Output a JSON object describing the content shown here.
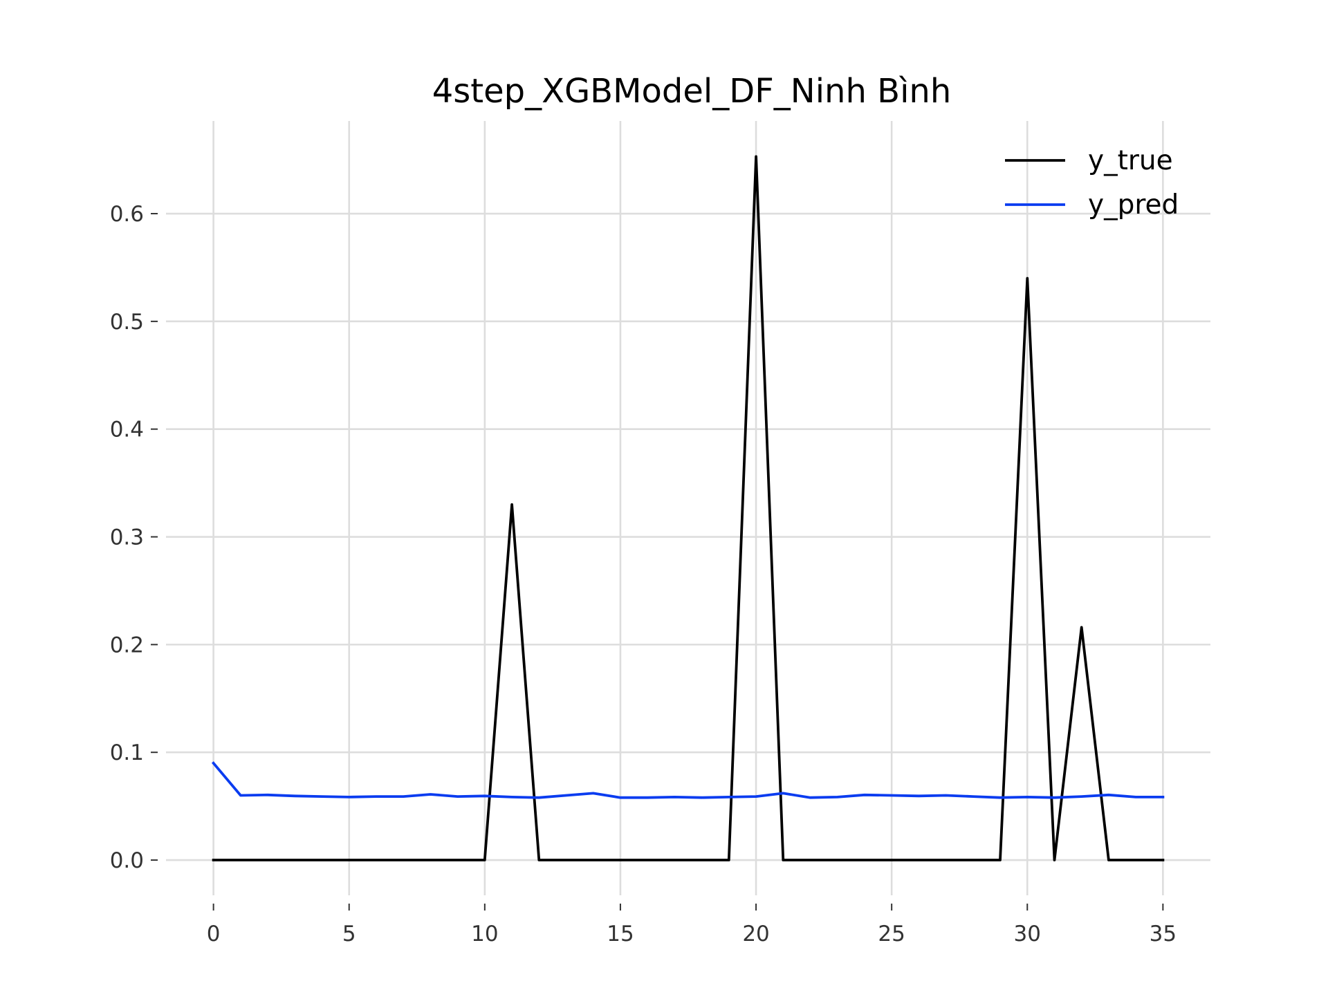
{
  "chart_data": {
    "type": "line",
    "title": "4step_XGBModel_DF_Ninh Bình",
    "xlabel": "",
    "ylabel": "",
    "xlim": [
      -1.75,
      36.75
    ],
    "ylim": [
      -0.0327,
      0.686
    ],
    "x_ticks": [
      0,
      5,
      10,
      15,
      20,
      25,
      30,
      35
    ],
    "y_ticks": [
      0.0,
      0.1,
      0.2,
      0.3,
      0.4,
      0.5,
      0.6
    ],
    "x_tick_labels": [
      "0",
      "5",
      "10",
      "15",
      "20",
      "25",
      "30",
      "35"
    ],
    "y_tick_labels": [
      "0.0",
      "0.1",
      "0.2",
      "0.3",
      "0.4",
      "0.5",
      "0.6"
    ],
    "grid": true,
    "legend": "top-right",
    "x": [
      0,
      1,
      2,
      3,
      4,
      5,
      6,
      7,
      8,
      9,
      10,
      11,
      12,
      13,
      14,
      15,
      16,
      17,
      18,
      19,
      20,
      21,
      22,
      23,
      24,
      25,
      26,
      27,
      28,
      29,
      30,
      31,
      32,
      33,
      34,
      35
    ],
    "series": [
      {
        "name": "y_true",
        "color": "#000000",
        "values": [
          0,
          0,
          0,
          0,
          0,
          0,
          0,
          0,
          0,
          0,
          0,
          0.33,
          0,
          0,
          0,
          0,
          0,
          0,
          0,
          0,
          0.653,
          0,
          0,
          0,
          0,
          0,
          0,
          0,
          0,
          0,
          0.54,
          0,
          0.216,
          0,
          0,
          0
        ]
      },
      {
        "name": "y_pred",
        "color": "#0a3cf0",
        "values": [
          0.09,
          0.06,
          0.0605,
          0.0595,
          0.059,
          0.0585,
          0.059,
          0.059,
          0.061,
          0.059,
          0.0595,
          0.0585,
          0.058,
          0.06,
          0.062,
          0.058,
          0.058,
          0.0585,
          0.058,
          0.0585,
          0.059,
          0.062,
          0.058,
          0.0585,
          0.0605,
          0.06,
          0.0595,
          0.06,
          0.059,
          0.058,
          0.0585,
          0.058,
          0.059,
          0.0605,
          0.0585,
          0.0585
        ]
      }
    ]
  }
}
